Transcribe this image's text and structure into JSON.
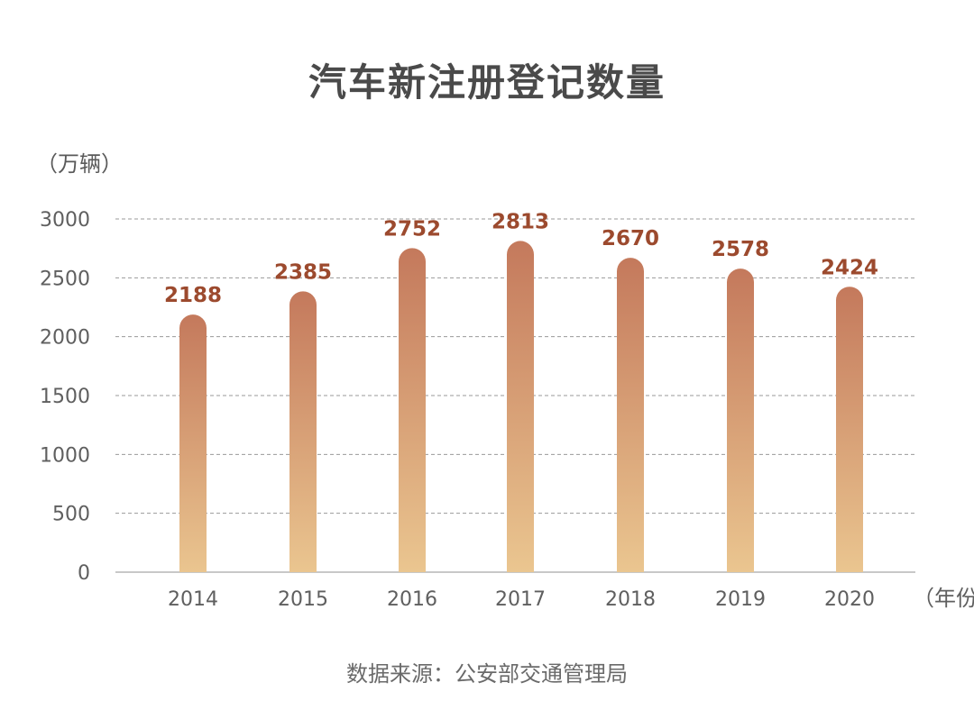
{
  "chart_data": {
    "type": "bar",
    "title": "汽车新注册登记数量",
    "ylabel": "（万辆）",
    "xlabel": "（年份）",
    "categories": [
      "2014",
      "2015",
      "2016",
      "2017",
      "2018",
      "2019",
      "2020"
    ],
    "values": [
      2188,
      2385,
      2752,
      2813,
      2670,
      2578,
      2424
    ],
    "ylim": [
      0,
      3000
    ],
    "yticks": [
      "0",
      "500",
      "1000",
      "1500",
      "2000",
      "2500",
      "3000"
    ],
    "grid": true,
    "colors": {
      "bar_top": "#c4795c",
      "bar_bottom": "#ecc992",
      "value_label": "#9c4a2e",
      "grid": "#9a9a9a",
      "axis_text": "#5f5f5f"
    }
  },
  "source": "数据来源：公安部交通管理局"
}
